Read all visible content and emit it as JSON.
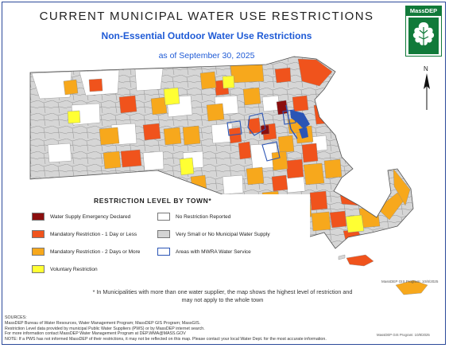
{
  "title": "CURRENT MUNICIPAL WATER USE RESTRICTIONS",
  "subtitle": "Non-Essential Outdoor Water Use Restrictions",
  "date": "as of September 30, 2025",
  "logo_text": "MassDEP",
  "north_label": "N",
  "legend": {
    "title": "RESTRICTION LEVEL BY TOWN*",
    "items": [
      {
        "label": "Water Supply Emergency Declared",
        "color": "#8b0e0e",
        "kind": "fill"
      },
      {
        "label": "No Restriction Reported",
        "color": "#ffffff",
        "kind": "fill"
      },
      {
        "label": "Mandatory Restriction - 1 Day or Less",
        "color": "#f0531c",
        "kind": "fill"
      },
      {
        "label": "Very Small or No Municipal Water Supply",
        "color": "#d4d4d4",
        "kind": "fill"
      },
      {
        "label": "Mandatory Restriction - 2 Days or More",
        "color": "#f7a81c",
        "kind": "fill"
      },
      {
        "label": "Areas with MWRA Water Service",
        "color": "#2b55b5",
        "kind": "outline"
      },
      {
        "label": "Voluntary Restriction",
        "color": "#ffff33",
        "kind": "fill"
      }
    ]
  },
  "note": [
    "* In Municipalities with more than one water supplier, the map shows the highest level of restriction and",
    "may not apply to the whole town"
  ],
  "sources": [
    "SOURCES:",
    "MassDEP Bureau of Water Resources, Water Management Program; MassDEP GIS Program; MassGIS.",
    "Restriction Level data provided by municipal Public Water Suppliers (PWS) or by MassDEP internet search.",
    "For more information contact MassDEP Water Management Program at DEP.WMA@MASS.GOV",
    "NOTE: If a PWS has not informed MassDEP of their restrictions, it may not be reflected on this map. Please contact your local Water Dept. for the most accurate information."
  ],
  "credit": "MassDEP GIS Program: 10/8/2025",
  "credit2": "MassDEP GIS Program: 10/8/2025"
}
